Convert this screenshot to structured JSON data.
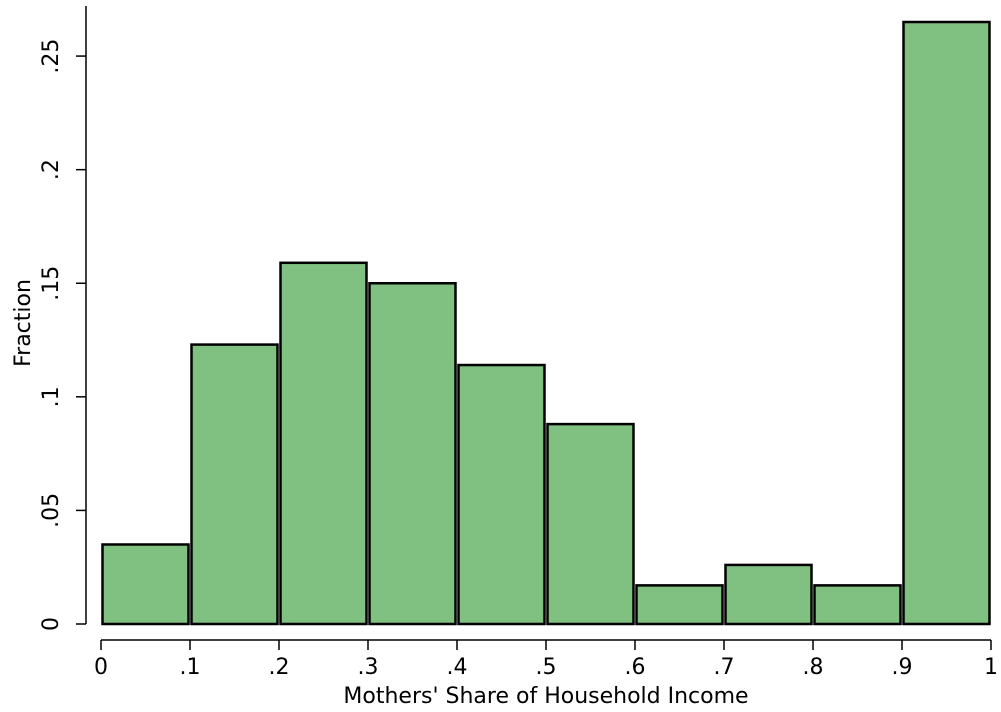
{
  "chart_data": {
    "type": "bar",
    "subtype": "histogram",
    "xlabel": "Mothers' Share of Household Income",
    "ylabel": "Fraction",
    "xlim": [
      0,
      1
    ],
    "ylim": [
      0,
      0.265
    ],
    "grid": false,
    "bar_color": "#80c080",
    "bar_edge_color": "#000000",
    "bins": [
      {
        "start": 0.0,
        "end": 0.1,
        "value": 0.035
      },
      {
        "start": 0.1,
        "end": 0.2,
        "value": 0.123
      },
      {
        "start": 0.2,
        "end": 0.3,
        "value": 0.159
      },
      {
        "start": 0.3,
        "end": 0.4,
        "value": 0.15
      },
      {
        "start": 0.4,
        "end": 0.5,
        "value": 0.114
      },
      {
        "start": 0.5,
        "end": 0.6,
        "value": 0.088
      },
      {
        "start": 0.6,
        "end": 0.7,
        "value": 0.017
      },
      {
        "start": 0.7,
        "end": 0.8,
        "value": 0.026
      },
      {
        "start": 0.8,
        "end": 0.9,
        "value": 0.017
      },
      {
        "start": 0.9,
        "end": 1.0,
        "value": 0.265
      }
    ],
    "x_ticks": [
      {
        "value": 0.0,
        "label": "0"
      },
      {
        "value": 0.1,
        "label": ".1"
      },
      {
        "value": 0.2,
        "label": ".2"
      },
      {
        "value": 0.3,
        "label": ".3"
      },
      {
        "value": 0.4,
        "label": ".4"
      },
      {
        "value": 0.5,
        "label": ".5"
      },
      {
        "value": 0.6,
        "label": ".6"
      },
      {
        "value": 0.7,
        "label": ".7"
      },
      {
        "value": 0.8,
        "label": ".8"
      },
      {
        "value": 0.9,
        "label": ".9"
      },
      {
        "value": 1.0,
        "label": "1"
      }
    ],
    "y_ticks": [
      {
        "value": 0.0,
        "label": "0"
      },
      {
        "value": 0.05,
        "label": ".05"
      },
      {
        "value": 0.1,
        "label": ".1"
      },
      {
        "value": 0.15,
        "label": ".15"
      },
      {
        "value": 0.2,
        "label": ".2"
      },
      {
        "value": 0.25,
        "label": ".25"
      }
    ]
  }
}
